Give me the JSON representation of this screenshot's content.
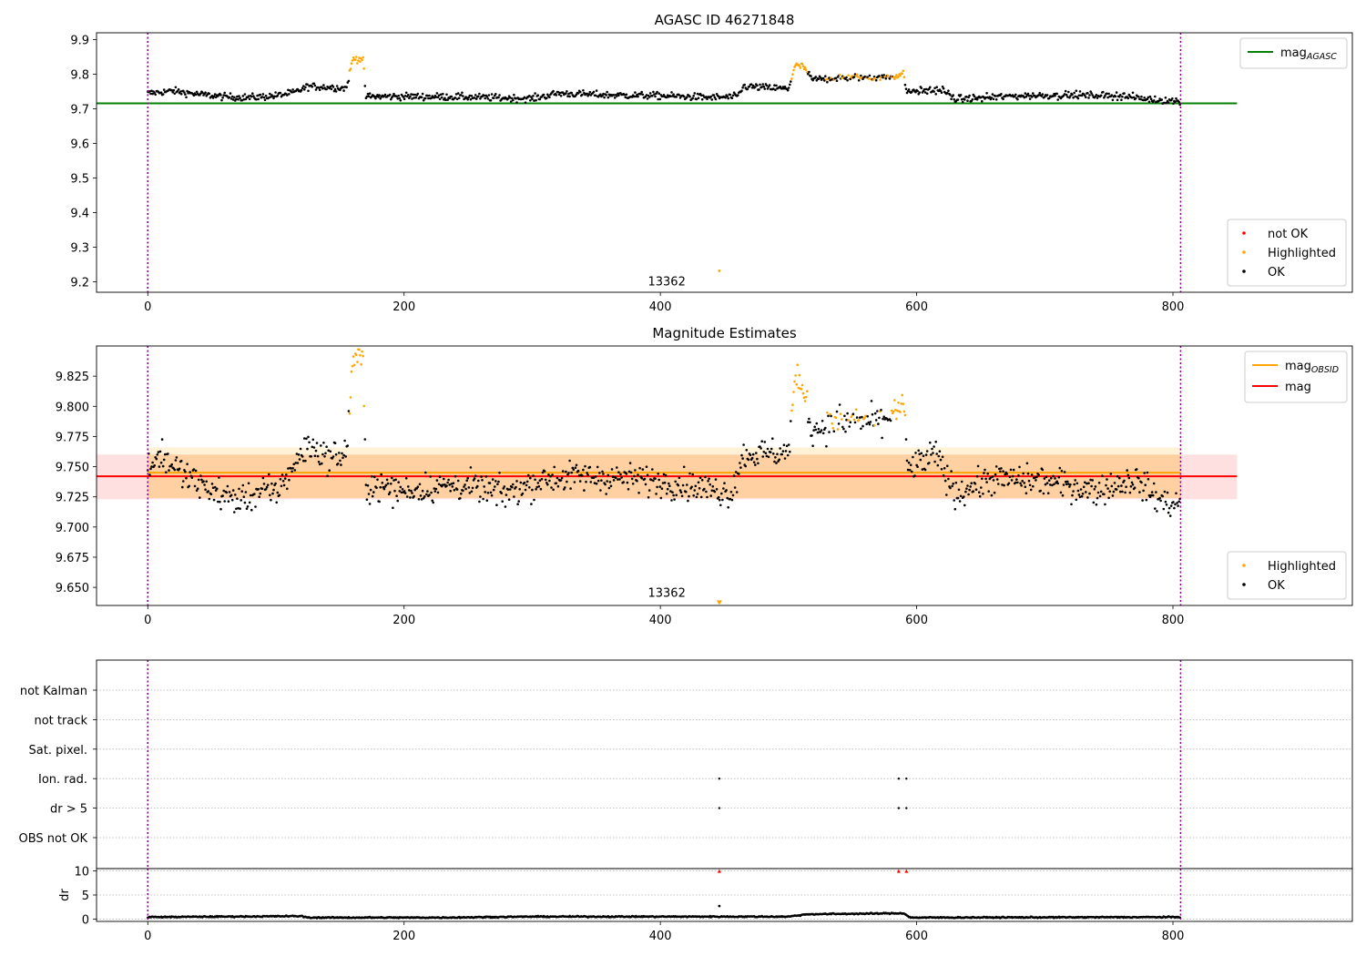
{
  "chart_data": [
    {
      "type": "scatter",
      "title": "AGASC ID 46271848",
      "xlim": [
        -40,
        940
      ],
      "ylim": [
        9.17,
        9.92
      ],
      "xticks": [
        0,
        200,
        400,
        600,
        800
      ],
      "yticks": [
        9.2,
        9.3,
        9.4,
        9.5,
        9.6,
        9.7,
        9.8,
        9.9
      ],
      "ytick_format": 1,
      "obsid_boundaries": [
        0,
        806
      ],
      "lines": [
        {
          "name": "mag_AGASC",
          "label_main": "mag",
          "label_sub": "AGASC",
          "y": 9.716,
          "x_range": [
            -40,
            850
          ],
          "color": "#008000"
        }
      ],
      "bands": [],
      "annotation": {
        "text": "13362",
        "x": 405,
        "y": 9.2
      },
      "legend_lines": [
        {
          "main": "mag",
          "sub": "AGASC",
          "color": "#008000"
        }
      ],
      "legend_points": [
        {
          "label": "not OK",
          "color": "#ff0000"
        },
        {
          "label": "Highlighted",
          "color": "#ffa500"
        },
        {
          "label": "OK",
          "color": "#000000"
        }
      ],
      "profile": [
        [
          0,
          9.745,
          "ok"
        ],
        [
          20,
          9.752,
          "ok"
        ],
        [
          40,
          9.742,
          "ok"
        ],
        [
          60,
          9.735,
          "ok"
        ],
        [
          80,
          9.733,
          "ok"
        ],
        [
          100,
          9.738,
          "ok"
        ],
        [
          115,
          9.748,
          "ok"
        ],
        [
          125,
          9.765,
          "ok"
        ],
        [
          140,
          9.763,
          "ok"
        ],
        [
          155,
          9.76,
          "ok"
        ],
        [
          160,
          9.845,
          "hi"
        ],
        [
          168,
          9.845,
          "hi"
        ],
        [
          170,
          9.736,
          "ok"
        ],
        [
          200,
          9.736,
          "ok"
        ],
        [
          240,
          9.735,
          "ok"
        ],
        [
          300,
          9.73,
          "ok"
        ],
        [
          320,
          9.745,
          "ok"
        ],
        [
          360,
          9.74,
          "ok"
        ],
        [
          400,
          9.738,
          "ok"
        ],
        [
          440,
          9.733,
          "ok"
        ],
        [
          460,
          9.735,
          "ok"
        ],
        [
          465,
          9.765,
          "ok"
        ],
        [
          500,
          9.758,
          "ok"
        ],
        [
          505,
          9.825,
          "hi"
        ],
        [
          512,
          9.822,
          "hi"
        ],
        [
          518,
          9.785,
          "ok"
        ],
        [
          540,
          9.79,
          "mix"
        ],
        [
          580,
          9.792,
          "mix"
        ],
        [
          590,
          9.8,
          "hi"
        ],
        [
          592,
          9.75,
          "ok"
        ],
        [
          620,
          9.755,
          "ok"
        ],
        [
          630,
          9.728,
          "ok"
        ],
        [
          680,
          9.738,
          "ok"
        ],
        [
          720,
          9.74,
          "ok"
        ],
        [
          760,
          9.738,
          "ok"
        ],
        [
          780,
          9.728,
          "ok"
        ],
        [
          806,
          9.722,
          "ok"
        ]
      ],
      "noise": 0.01,
      "outliers": [
        {
          "x": 446,
          "y": 9.232,
          "color": "#ffa500"
        }
      ]
    },
    {
      "type": "scatter",
      "title": "Magnitude Estimates",
      "xlim": [
        -40,
        940
      ],
      "ylim": [
        9.635,
        9.85
      ],
      "xticks": [
        0,
        200,
        400,
        600,
        800
      ],
      "yticks": [
        9.65,
        9.675,
        9.7,
        9.725,
        9.75,
        9.775,
        9.8,
        9.825
      ],
      "ytick_format": 3,
      "obsid_boundaries": [
        0,
        806
      ],
      "lines": [
        {
          "name": "mag_OBSID",
          "y": 9.745,
          "x_range": [
            0,
            806
          ],
          "color": "#ffa500"
        },
        {
          "name": "mag",
          "y": 9.742,
          "x_range": [
            -40,
            850
          ],
          "color": "#ff0000"
        }
      ],
      "bands": [
        {
          "y0": 9.723,
          "y1": 9.76,
          "x_range": [
            -40,
            850
          ],
          "color": "#ff0000",
          "opacity": 0.12
        },
        {
          "y0": 9.724,
          "y1": 9.766,
          "x_range": [
            0,
            806
          ],
          "color": "#ffa500",
          "opacity": 0.15
        },
        {
          "y0": 9.724,
          "y1": 9.76,
          "x_range": [
            0,
            806
          ],
          "color": "#ffa500",
          "opacity": 0.15
        }
      ],
      "annotation": {
        "text": "13362",
        "x": 405,
        "y": 9.645
      },
      "legend_lines": [
        {
          "main": "mag",
          "sub": "OBSID",
          "color": "#ffa500"
        },
        {
          "main": "mag",
          "sub": "",
          "color": "#ff0000"
        }
      ],
      "legend_points": [
        {
          "label": "Highlighted",
          "color": "#ffa500"
        },
        {
          "label": "OK",
          "color": "#000000"
        }
      ],
      "profile": [
        [
          0,
          9.75,
          "ok"
        ],
        [
          10,
          9.76,
          "ok"
        ],
        [
          30,
          9.742,
          "ok"
        ],
        [
          50,
          9.73,
          "ok"
        ],
        [
          70,
          9.722,
          "ok"
        ],
        [
          90,
          9.73,
          "ok"
        ],
        [
          100,
          9.728,
          "ok"
        ],
        [
          110,
          9.745,
          "ok"
        ],
        [
          125,
          9.768,
          "ok"
        ],
        [
          140,
          9.758,
          "ok"
        ],
        [
          155,
          9.76,
          "ok"
        ],
        [
          160,
          9.84,
          "hi"
        ],
        [
          168,
          9.838,
          "hi"
        ],
        [
          170,
          9.735,
          "ok"
        ],
        [
          200,
          9.73,
          "ok"
        ],
        [
          240,
          9.735,
          "ok"
        ],
        [
          280,
          9.728,
          "ok"
        ],
        [
          310,
          9.74,
          "ok"
        ],
        [
          340,
          9.742,
          "ok"
        ],
        [
          380,
          9.74,
          "ok"
        ],
        [
          420,
          9.735,
          "ok"
        ],
        [
          455,
          9.728,
          "ok"
        ],
        [
          465,
          9.76,
          "ok"
        ],
        [
          500,
          9.762,
          "ok"
        ],
        [
          505,
          9.822,
          "hi"
        ],
        [
          512,
          9.815,
          "hi"
        ],
        [
          518,
          9.78,
          "ok"
        ],
        [
          540,
          9.788,
          "mix"
        ],
        [
          570,
          9.788,
          "mix"
        ],
        [
          590,
          9.8,
          "hi"
        ],
        [
          593,
          9.748,
          "ok"
        ],
        [
          615,
          9.76,
          "ok"
        ],
        [
          630,
          9.728,
          "ok"
        ],
        [
          660,
          9.74,
          "ok"
        ],
        [
          700,
          9.738,
          "ok"
        ],
        [
          740,
          9.73,
          "ok"
        ],
        [
          770,
          9.74,
          "ok"
        ],
        [
          790,
          9.722,
          "ok"
        ],
        [
          806,
          9.718,
          "ok"
        ]
      ],
      "noise": 0.012,
      "outliers": [
        {
          "x": 446,
          "y": 9.637,
          "color": "#ffa500"
        }
      ]
    },
    {
      "type": "scatter",
      "title": "",
      "xlim": [
        -40,
        940
      ],
      "xticks": [
        0,
        200,
        400,
        600,
        800
      ],
      "flag_rows": [
        "not Kalman",
        "not track",
        "Sat. pixel.",
        "Ion. rad.",
        "dr > 5",
        "OBS not OK"
      ],
      "flag_points": [
        {
          "row": "Ion. rad.",
          "x": [
            446,
            586,
            592
          ]
        },
        {
          "row": "dr > 5",
          "x": [
            446,
            586,
            592
          ]
        }
      ],
      "obsid_boundaries": [
        0,
        806
      ]
    },
    {
      "type": "scatter",
      "title": "",
      "xlim": [
        -40,
        940
      ],
      "ylim": [
        -0.5,
        10.5
      ],
      "xticks": [
        0,
        200,
        400,
        600,
        800
      ],
      "xtick_labels": [
        "0",
        "200",
        "400",
        "600",
        "800"
      ],
      "yticks": [
        0,
        5,
        10
      ],
      "ylabel": "dr",
      "obsid_boundaries": [
        0,
        806
      ],
      "profile": [
        [
          0,
          0.4,
          "ok"
        ],
        [
          120,
          0.6,
          "ok"
        ],
        [
          125,
          0.3,
          "ok"
        ],
        [
          230,
          0.3,
          "ok"
        ],
        [
          300,
          0.5,
          "ok"
        ],
        [
          500,
          0.5,
          "ok"
        ],
        [
          515,
          1.0,
          "ok"
        ],
        [
          590,
          1.2,
          "ok"
        ],
        [
          595,
          0.3,
          "ok"
        ],
        [
          806,
          0.4,
          "ok"
        ]
      ],
      "noise": 0.12,
      "outliers": [
        {
          "x": 446,
          "y": 2.7,
          "color": "#000000"
        }
      ],
      "clipped": [
        {
          "x": 446,
          "y": 10
        },
        {
          "x": 586,
          "y": 10
        },
        {
          "x": 592,
          "y": 10
        }
      ]
    }
  ]
}
